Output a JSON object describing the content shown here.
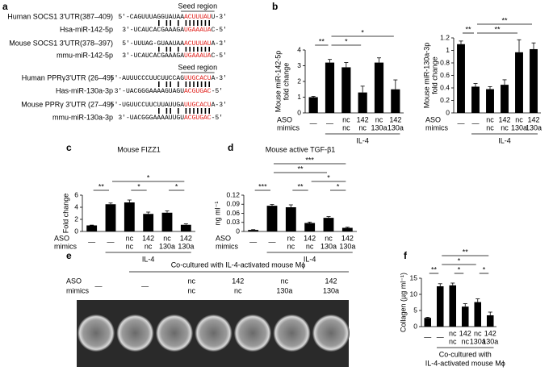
{
  "letters": [
    "a",
    "b",
    "c",
    "d",
    "e",
    "f"
  ],
  "alignment": {
    "seed_labels": [
      "Seed region",
      "Seed region"
    ],
    "rows": [
      {
        "label": "Human SOCS1 3'UTR(387–409)",
        "pre": "5'-CAGUUUAGGUAUAA",
        "seed": "ACUUUAU",
        "post": "U-3'"
      },
      {
        "label": "Hsa-miR-142-5p",
        "pre": "3'-UCAUCACGAAAGA",
        "seed": "UGAAAUA",
        "post": "C-5'"
      },
      {
        "label": "Mouse SOCS1 3'UTR(378–397)",
        "pre": "5'-UUUAG-GUAAUAA",
        "seed": "ACUUUAU",
        "post": "A-3'"
      },
      {
        "label": "mmu-miR-142-5p",
        "pre": "3'-UCAUCACGAAAGA",
        "seed": "UGAAAUA",
        "post": "C-5'"
      },
      {
        "label": "Human PPRγ3'UTR (26–49)",
        "pre": "5'-AUUUCCCUUCUUCCAG",
        "seed": "UUGCACU",
        "post": "A-3'"
      },
      {
        "label": "Has-miR-130a-3p",
        "pre": "3'-UACGGGAAAAGUAGU",
        "seed": "ACGUGAC",
        "post": "-5'"
      },
      {
        "label": "Mouse PPRγ 3'UTR (27–49)",
        "pre": "5'-UGUUCCUUCUUAUUGA",
        "seed": "UUGCACU",
        "post": "A-3'"
      },
      {
        "label": "mmu-miR-130a-3p",
        "pre": "3'-UACGGGAAAAUUGU",
        "seed": "ACGUGAC",
        "post": "-5'"
      }
    ]
  },
  "chart_data": [
    {
      "type": "bar",
      "y_label": [
        "Mouse miR-142-5p",
        "fold change"
      ],
      "ylim": [
        0,
        4
      ],
      "yticks": [
        0,
        1,
        2,
        3,
        4
      ],
      "values": [
        1,
        3.2,
        2.9,
        1.3,
        3.2,
        1.5
      ],
      "errors": [
        0.05,
        0.2,
        0.3,
        0.4,
        0.3,
        0.6
      ],
      "color": "#000000",
      "row_labels": [
        "ASO",
        "mimics"
      ],
      "dash_labels": [
        "—",
        "—",
        null,
        null,
        null,
        null
      ],
      "aso_labels": [
        null,
        null,
        "nc",
        "142",
        "nc",
        "142"
      ],
      "mimics_labels": [
        null,
        null,
        "nc",
        "nc",
        "130a",
        "130a"
      ],
      "group_label": [
        "IL-4"
      ],
      "significance": [
        {
          "label": "**",
          "bars": [
            0,
            1
          ]
        },
        {
          "label": "*",
          "bars": [
            1,
            3
          ]
        },
        {
          "label": "*",
          "bars": [
            1,
            5
          ]
        }
      ]
    },
    {
      "type": "bar",
      "y_label": [
        "Mouse miR-130a-3p",
        "fold change"
      ],
      "ylim": [
        0,
        1.2
      ],
      "yticks": [
        0,
        0.2,
        0.4,
        0.6,
        0.8,
        1.0,
        1.2
      ],
      "values": [
        1.1,
        0.42,
        0.38,
        0.45,
        0.97,
        1.02
      ],
      "errors": [
        0.05,
        0.05,
        0.04,
        0.08,
        0.2,
        0.1
      ],
      "color": "#000000",
      "row_labels": [
        "ASO",
        "mimics"
      ],
      "dash_labels": [
        "—",
        "—",
        null,
        null,
        null,
        null
      ],
      "aso_labels": [
        null,
        null,
        "nc",
        "142",
        "nc",
        "142"
      ],
      "mimics_labels": [
        null,
        null,
        "nc",
        "nc",
        "130a",
        "130a"
      ],
      "group_label": [
        "IL-4"
      ],
      "significance": [
        {
          "label": "**",
          "bars": [
            0,
            1
          ]
        },
        {
          "label": "**",
          "bars": [
            1,
            4
          ]
        },
        {
          "label": "**",
          "bars": [
            1,
            5
          ]
        }
      ]
    },
    {
      "type": "bar",
      "title": "Mouse FIZZ1",
      "y_label": [
        "Fold change"
      ],
      "ylim": [
        0,
        6
      ],
      "yticks": [
        0,
        2,
        4,
        6
      ],
      "values": [
        1,
        4.5,
        4.8,
        2.9,
        3.1,
        1.1
      ],
      "errors": [
        0.05,
        0.2,
        0.4,
        0.3,
        0.3,
        0.15
      ],
      "color": "#000000",
      "row_labels": [
        "ASO",
        "mimics"
      ],
      "dash_labels": [
        "—",
        "—",
        null,
        null,
        null,
        null
      ],
      "aso_labels": [
        null,
        null,
        "nc",
        "142",
        "nc",
        "142"
      ],
      "mimics_labels": [
        null,
        null,
        "nc",
        "nc",
        "130a",
        "130a"
      ],
      "group_label": [
        "IL-4"
      ],
      "significance": [
        {
          "label": "**",
          "bars": [
            0,
            1
          ]
        },
        {
          "label": "*",
          "bars": [
            2,
            3
          ]
        },
        {
          "label": "*",
          "bars": [
            4,
            5
          ]
        },
        {
          "label": "*",
          "bars": [
            1,
            5
          ]
        }
      ]
    },
    {
      "type": "bar",
      "title": "Mouse active TGF-β1",
      "y_label": [
        "ng ml⁻¹"
      ],
      "ylim": [
        0,
        0.12
      ],
      "yticks": [
        0,
        0.03,
        0.06,
        0.09,
        0.12
      ],
      "values": [
        0.005,
        0.085,
        0.08,
        0.028,
        0.045,
        0.012
      ],
      "errors": [
        0.001,
        0.004,
        0.008,
        0.003,
        0.004,
        0.002
      ],
      "color": "#000000",
      "row_labels": [
        "ASO",
        "mimics"
      ],
      "dash_labels": [
        "—",
        "—",
        null,
        null,
        null,
        null
      ],
      "aso_labels": [
        null,
        null,
        "nc",
        "142",
        "nc",
        "142"
      ],
      "mimics_labels": [
        null,
        null,
        "nc",
        "nc",
        "130a",
        "130a"
      ],
      "group_label": [
        "IL-4"
      ],
      "significance": [
        {
          "label": "***",
          "bars": [
            0,
            1
          ]
        },
        {
          "label": "**",
          "bars": [
            2,
            3
          ]
        },
        {
          "label": "*",
          "bars": [
            4,
            5
          ]
        },
        {
          "label": "*",
          "bars": [
            3,
            5
          ]
        },
        {
          "label": "**",
          "bars": [
            1,
            4
          ]
        },
        {
          "label": "***",
          "bars": [
            1,
            5
          ]
        }
      ]
    },
    {
      "type": "bar",
      "y_label": [
        "Collagen (µg ml⁻¹)"
      ],
      "ylim": [
        0,
        15
      ],
      "yticks": [
        0,
        5,
        10,
        15
      ],
      "values": [
        2.7,
        12.5,
        12.8,
        6.2,
        7.6,
        3.5
      ],
      "errors": [
        0.2,
        0.8,
        0.7,
        0.9,
        1.0,
        1.0
      ],
      "color": "#000000",
      "dash_labels": [
        "—",
        "—",
        null,
        null,
        null,
        null
      ],
      "aso_labels": [
        null,
        null,
        "nc",
        "142",
        "nc",
        "142"
      ],
      "mimics_labels": [
        null,
        null,
        "nc",
        "nc",
        "130a",
        "130a"
      ],
      "group_label": [
        "Co-cultured with",
        "IL-4-activated mouse Mϕ"
      ],
      "significance": [
        {
          "label": "**",
          "bars": [
            0,
            1
          ]
        },
        {
          "label": "*",
          "bars": [
            2,
            3
          ]
        },
        {
          "label": "*",
          "bars": [
            4,
            5
          ]
        },
        {
          "label": "*",
          "bars": [
            1,
            4
          ]
        },
        {
          "label": "**",
          "bars": [
            1,
            5
          ]
        }
      ]
    }
  ],
  "wells": {
    "header": "Co-cultured with IL-4-activated mouse Mϕ",
    "row_labels": [
      "ASO",
      "mimics"
    ],
    "dash_labels": [
      "—",
      "—",
      null,
      null,
      null,
      null
    ],
    "aso_labels": [
      null,
      null,
      "nc",
      "142",
      "nc",
      "142"
    ],
    "mimics_labels": [
      null,
      null,
      "nc",
      "nc",
      "130a",
      "130a"
    ]
  }
}
